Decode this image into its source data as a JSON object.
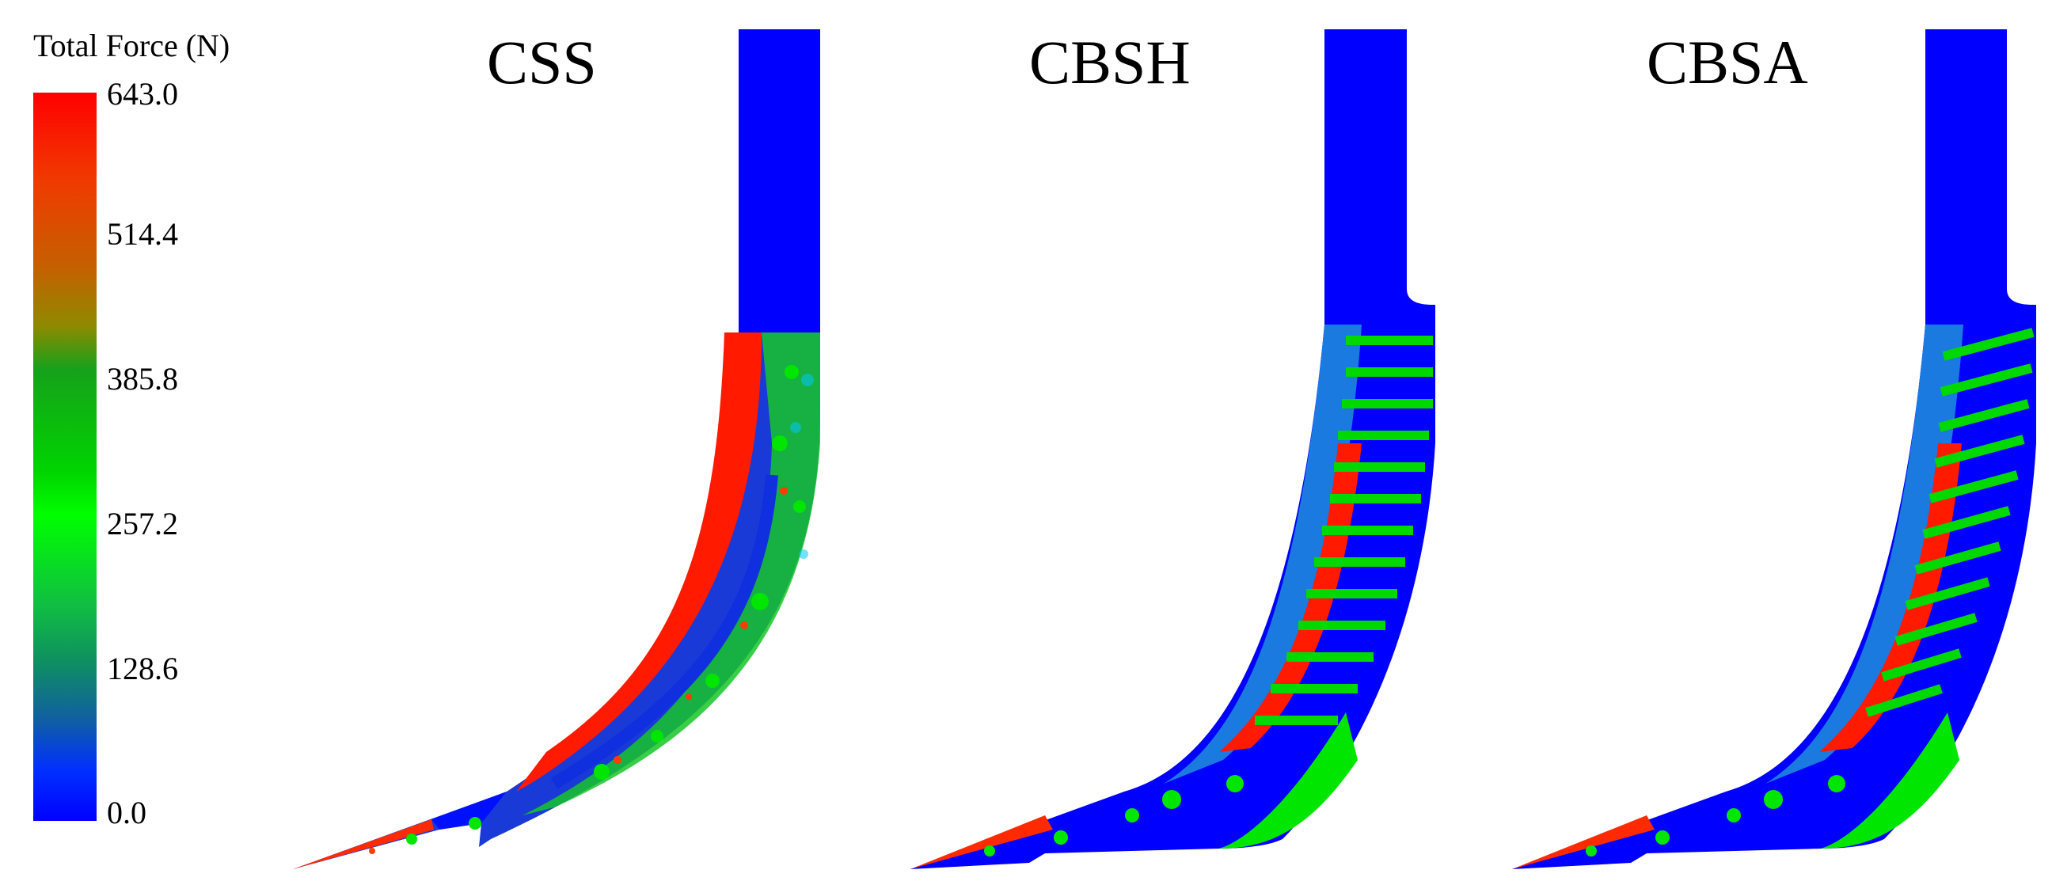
{
  "legend": {
    "title": "Total Force (N)",
    "ticks": [
      "643.0",
      "514.4",
      "385.8",
      "257.2",
      "128.6",
      "0.0"
    ],
    "min": 0.0,
    "max": 643.0,
    "colors": [
      "#ff0000",
      "#c56000",
      "#16a11a",
      "#00ff00",
      "#10a050",
      "#1060a0",
      "#0000ff"
    ]
  },
  "panels": [
    {
      "title": "CSS"
    },
    {
      "title": "CBSH"
    },
    {
      "title": "CBSA"
    }
  ]
}
